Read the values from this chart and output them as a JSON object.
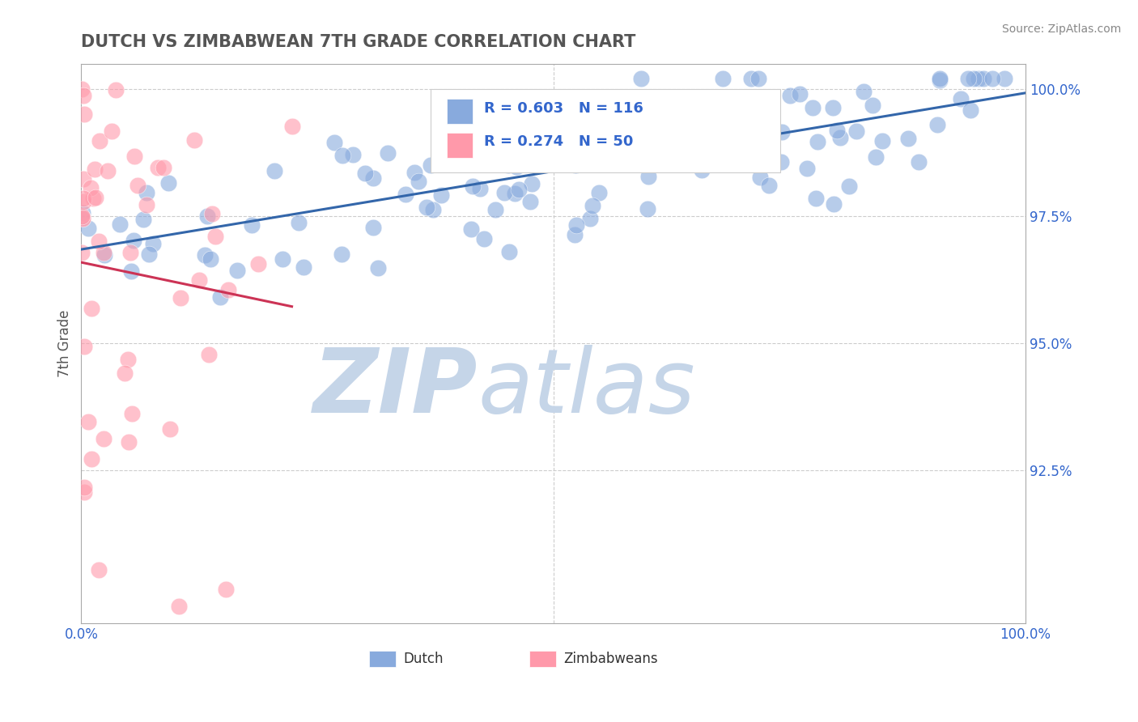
{
  "title": "DUTCH VS ZIMBABWEAN 7TH GRADE CORRELATION CHART",
  "source_text": "Source: ZipAtlas.com",
  "ylabel": "7th Grade",
  "xlim": [
    0.0,
    1.0
  ],
  "ylim": [
    0.895,
    1.005
  ],
  "yticks": [
    0.925,
    0.95,
    0.975,
    1.0
  ],
  "ytick_labels": [
    "92.5%",
    "95.0%",
    "97.5%",
    "100.0%"
  ],
  "xtick_positions": [
    0.0,
    0.5,
    1.0
  ],
  "xtick_labels": [
    "0.0%",
    "",
    "100.0%"
  ],
  "dutch_color": "#88AADD",
  "zimbabwe_color": "#FF99AA",
  "dutch_line_color": "#3366AA",
  "zimbabwe_line_color": "#CC3355",
  "dutch_R": 0.603,
  "dutch_N": 116,
  "zimbabwe_R": 0.274,
  "zimbabwe_N": 50,
  "background_color": "#FFFFFF",
  "grid_color": "#CCCCCC",
  "watermark_zip": "ZIP",
  "watermark_atlas": "atlas",
  "watermark_color_zip": "#C5D5E8",
  "watermark_color_atlas": "#C5D5E8",
  "title_color": "#555555",
  "legend_text_color": "#3366CC",
  "axis_color": "#AAAAAA",
  "seed": 7
}
